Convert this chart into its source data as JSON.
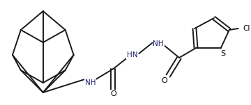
{
  "bg_color": "#ffffff",
  "bond_color": "#1a1a1a",
  "text_color": "#1a1a6e",
  "atom_label_color": "#000000",
  "line_width": 1.4,
  "figsize": [
    3.6,
    1.51
  ],
  "dpi": 100,
  "xlim": [
    0,
    360
  ],
  "ylim": [
    0,
    151
  ]
}
